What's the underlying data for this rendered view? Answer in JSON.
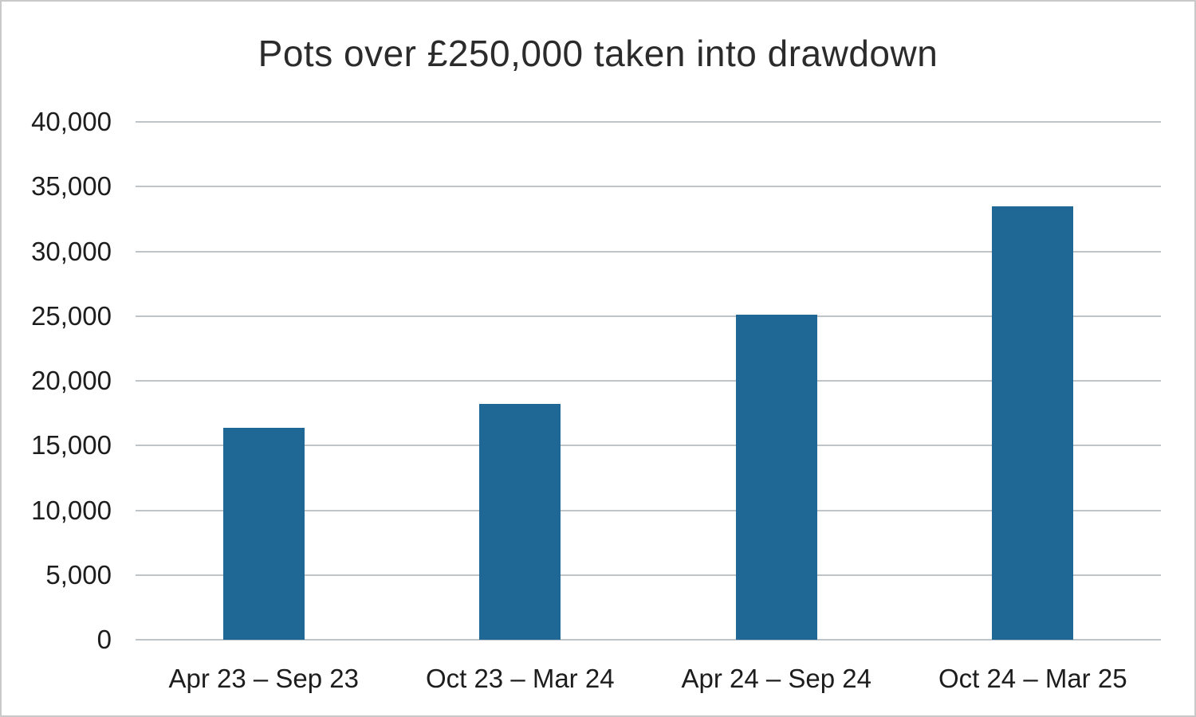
{
  "chart_data": {
    "type": "bar",
    "title": "Pots over £250,000 taken into drawdown",
    "categories": [
      "Apr 23 – Sep 23",
      "Oct 23 – Mar 24",
      "Apr 24 – Sep 24",
      "Oct 24 – Mar 25"
    ],
    "values": [
      16400,
      18200,
      25100,
      33500
    ],
    "xlabel": "",
    "ylabel": "",
    "ylim": [
      0,
      40000
    ],
    "ytick_step": 5000,
    "ytick_labels": [
      "0",
      "5,000",
      "10,000",
      "15,000",
      "20,000",
      "25,000",
      "30,000",
      "35,000",
      "40,000"
    ],
    "grid": true,
    "legend": false,
    "colors": {
      "bar": "#1f6794",
      "gridline": "#bfc4c9",
      "title_text": "#2b2b2b",
      "axis_text": "#1d1d1d",
      "background": "#ffffff"
    }
  }
}
